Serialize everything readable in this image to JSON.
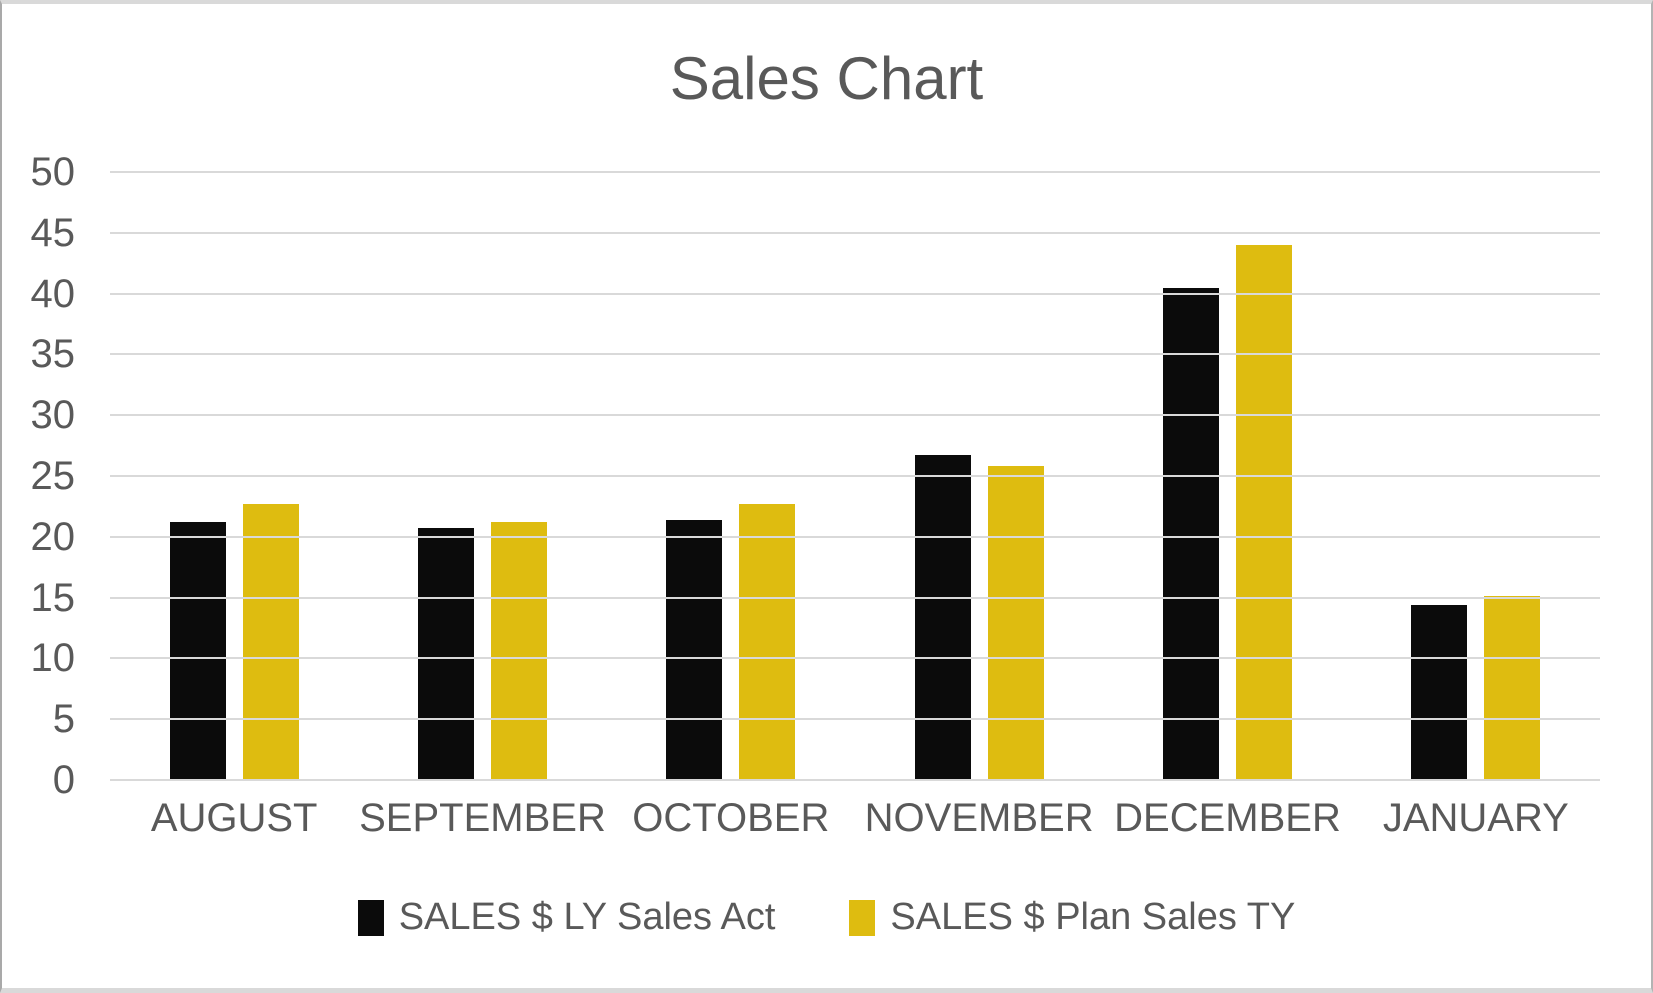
{
  "frame": {
    "background": "#FFFFFF",
    "border_color": "#D9D9D9"
  },
  "chart_data": {
    "type": "bar",
    "title": "Sales Chart",
    "categories": [
      "AUGUST",
      "SEPTEMBER",
      "OCTOBER",
      "NOVEMBER",
      "DECEMBER",
      "JANUARY"
    ],
    "series": [
      {
        "name": "SALES $ LY Sales Act",
        "color": "#0B0B0B",
        "values": [
          21.2,
          20.7,
          21.4,
          26.7,
          40.5,
          14.4
        ]
      },
      {
        "name": "SALES $ Plan Sales TY",
        "color": "#DEBC10",
        "values": [
          22.7,
          21.2,
          22.7,
          25.8,
          44.0,
          15.1
        ]
      }
    ],
    "xlabel": "",
    "ylabel": "",
    "ylim": [
      0,
      50
    ],
    "yticks": [
      0,
      5,
      10,
      15,
      20,
      25,
      30,
      35,
      40,
      45,
      50
    ],
    "grid": "horizontal",
    "legend_position": "bottom",
    "text_color": "#595959",
    "gridline_color": "#D9D9D9"
  }
}
